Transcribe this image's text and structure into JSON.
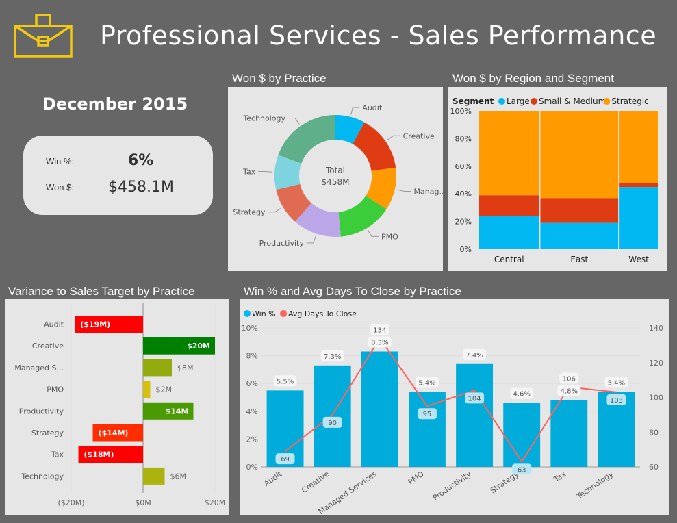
{
  "header": {
    "title": "Professional Services - Sales Performance",
    "icon": "briefcase-icon",
    "icon_color": "#f2c811"
  },
  "kpi": {
    "period": "December 2015",
    "win_pct_label": "Win %:",
    "win_pct_value": "6%",
    "won_label": "Won $:",
    "won_value": "$458.1M"
  },
  "panels": {
    "donut_title": "Won $ by Practice",
    "stacked_title": "Won $ by Region and Segment",
    "variance_title": "Variance to Sales Target by Practice",
    "combo_title": "Win % and Avg Days To Close by Practice"
  },
  "chart_data": [
    {
      "id": "donut",
      "type": "pie",
      "title": "Won $ by Practice",
      "center_label": "Total",
      "center_value": "$458M",
      "categories": [
        "Audit",
        "Creative",
        "Managed Services",
        "PMO",
        "Productivity",
        "Strategy",
        "Tax",
        "Technology"
      ],
      "display_labels": [
        "Audit",
        "Creative",
        "Manag...",
        "PMO",
        "Productivity",
        "Strategy",
        "Tax",
        "Technology"
      ],
      "values_pct": [
        7.9,
        14.9,
        11.4,
        14.4,
        12.9,
        9.9,
        9.2,
        19.4
      ],
      "colors": [
        "#01b8f2",
        "#e03c14",
        "#ff9a00",
        "#3ccd3a",
        "#bba6e8",
        "#e06a52",
        "#7dd3de",
        "#5faf8a"
      ]
    },
    {
      "id": "stacked",
      "type": "bar",
      "subtype": "100% stacked (mekko)",
      "title": "Won $ by Region and Segment",
      "legend_title": "Segment",
      "legend_position": "top-left",
      "categories": [
        "Central",
        "East",
        "West"
      ],
      "column_width_share": [
        0.34,
        0.44,
        0.22
      ],
      "series": [
        {
          "name": "Large",
          "color": "#01b8f2",
          "values": [
            24,
            19,
            45
          ]
        },
        {
          "name": "Small & Medium",
          "color": "#e03c14",
          "values": [
            15,
            18,
            3
          ]
        },
        {
          "name": "Strategic",
          "color": "#ff9a00",
          "values": [
            61,
            63,
            52
          ]
        }
      ],
      "yticks": [
        "0%",
        "20%",
        "40%",
        "60%",
        "80%",
        "100%"
      ],
      "ylim": [
        0,
        100
      ]
    },
    {
      "id": "variance",
      "type": "bar",
      "orientation": "horizontal",
      "title": "Variance to Sales Target by Practice",
      "categories": [
        "Audit",
        "Creative",
        "Managed S...",
        "PMO",
        "Productivity",
        "Strategy",
        "Tax",
        "Technology"
      ],
      "values": [
        -19,
        20,
        8,
        2,
        14,
        -14,
        -18,
        6
      ],
      "labels": [
        "($19M)",
        "$20M",
        "$8M",
        "$2M",
        "$14M",
        "($14M)",
        "($18M)",
        "$6M"
      ],
      "label_inside": [
        true,
        true,
        false,
        false,
        true,
        true,
        true,
        false
      ],
      "colors": [
        "#ff0000",
        "#008000",
        "#93ab0c",
        "#d5c012",
        "#4a9a04",
        "#ff2d00",
        "#ff0000",
        "#abb40f"
      ],
      "xticks": [
        "($20M)",
        "$0M",
        "$20M"
      ],
      "xlim": [
        -20,
        20
      ]
    },
    {
      "id": "combo",
      "type": "bar",
      "subtype": "bar + line, dual axis",
      "title": "Win % and Avg Days To Close by Practice",
      "legend_position": "top-left",
      "categories": [
        "Audit",
        "Creative",
        "Managed Services",
        "PMO",
        "Productivity",
        "Strategy",
        "Tax",
        "Technology"
      ],
      "series": [
        {
          "name": "Win %",
          "type": "bar",
          "axis": "left",
          "color": "#01acdb",
          "values": [
            5.5,
            7.3,
            8.3,
            5.4,
            7.4,
            4.6,
            4.8,
            5.4
          ],
          "labels": [
            "5.5%",
            "7.3%",
            "8.3%",
            "5.4%",
            "7.4%",
            "4.6%",
            "4.8%",
            "5.4%"
          ]
        },
        {
          "name": "Avg Days To Close",
          "type": "line",
          "axis": "right",
          "color": "#fd625e",
          "values": [
            69,
            90,
            134,
            95,
            104,
            63,
            106,
            103
          ],
          "labels": [
            "69",
            "90",
            "134",
            "95",
            "104",
            "63",
            "106",
            "103"
          ]
        }
      ],
      "yleft_ticks": [
        "0%",
        "2%",
        "4%",
        "6%",
        "8%",
        "10%"
      ],
      "yleft_lim": [
        0,
        10
      ],
      "yright_ticks": [
        "60",
        "80",
        "100",
        "120",
        "140"
      ],
      "yright_lim": [
        60,
        140
      ],
      "legend_colors": [
        "#01b8f2",
        "#fd625e"
      ]
    }
  ]
}
